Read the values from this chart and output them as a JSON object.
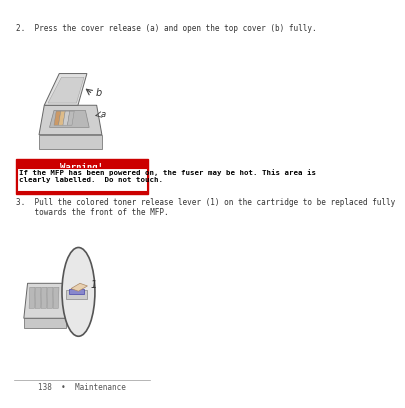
{
  "bg_color": "#ffffff",
  "text_color": "#333333",
  "step2_text": "2.  Press the cover release (a) and open the top cover (b) fully.",
  "step3_text": "3.  Pull the colored toner release lever (1) on the cartridge to be replaced fully\n    towards the front of the MFP.",
  "warning_title": "Warning!",
  "warning_body": "If the MFP has been powered on, the fuser may be hot. This area is\nclearly labelled.  Do not touch.",
  "warning_bg": "#cc0000",
  "warning_border": "#cc0000",
  "warning_inner_bg": "#ffffff",
  "footer_text": "138  •  Maintenance",
  "footer_color": "#555555"
}
